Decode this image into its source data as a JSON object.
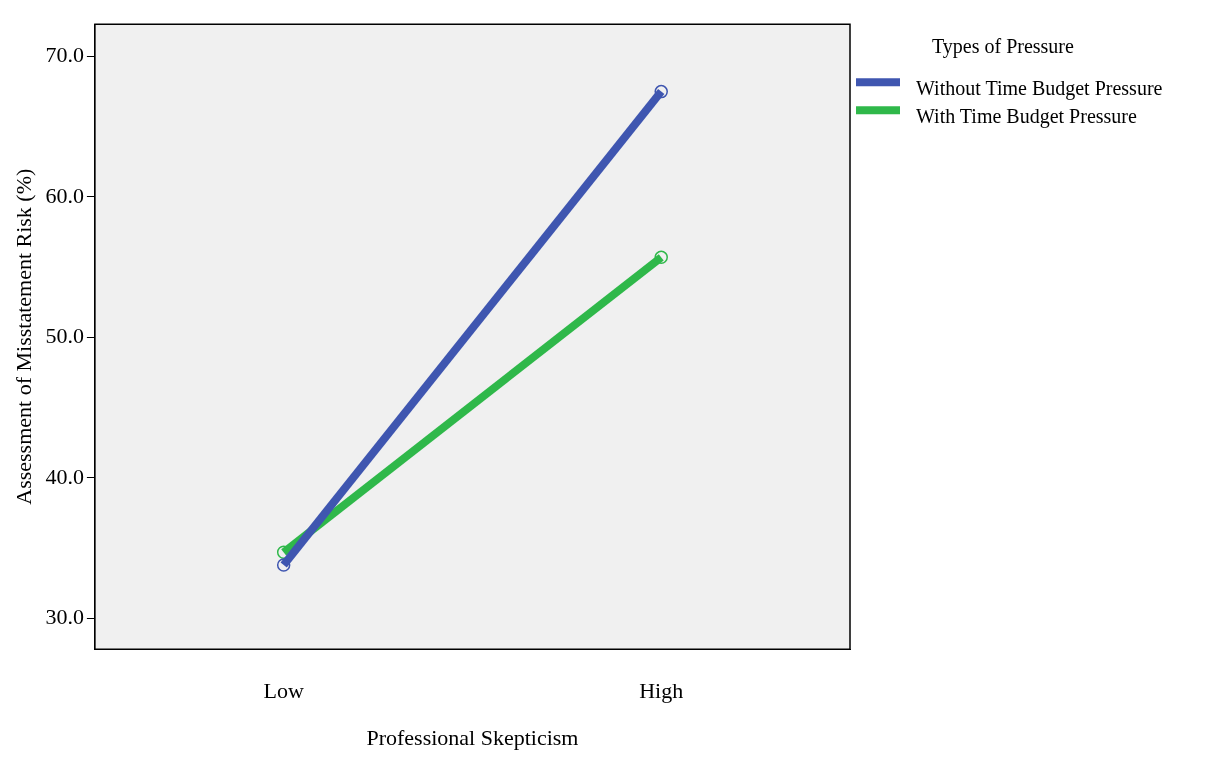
{
  "chart_data": {
    "type": "line",
    "xlabel": "Professional Skepticism",
    "ylabel": "Assessment of Misstatement Risk (%)",
    "legend_title": "Types of Pressure",
    "categories": [
      "Low",
      "High"
    ],
    "series": [
      {
        "name": "Without Time Budget Pressure",
        "color": "#3f56b0",
        "values": [
          33.8,
          67.5
        ]
      },
      {
        "name": "With Time Budget Pressure",
        "color": "#2fb84a",
        "values": [
          34.7,
          55.7
        ]
      }
    ],
    "ylim": [
      27.8,
      72.3
    ],
    "yticks": [
      {
        "value": 30,
        "label": "30.0"
      },
      {
        "value": 40,
        "label": "40.0"
      },
      {
        "value": 50,
        "label": "50.0"
      },
      {
        "value": 60,
        "label": "60.0"
      },
      {
        "value": 70,
        "label": "70.0"
      }
    ],
    "grid": false,
    "legend": "top right",
    "marker": "circle",
    "line_style": "solid"
  }
}
